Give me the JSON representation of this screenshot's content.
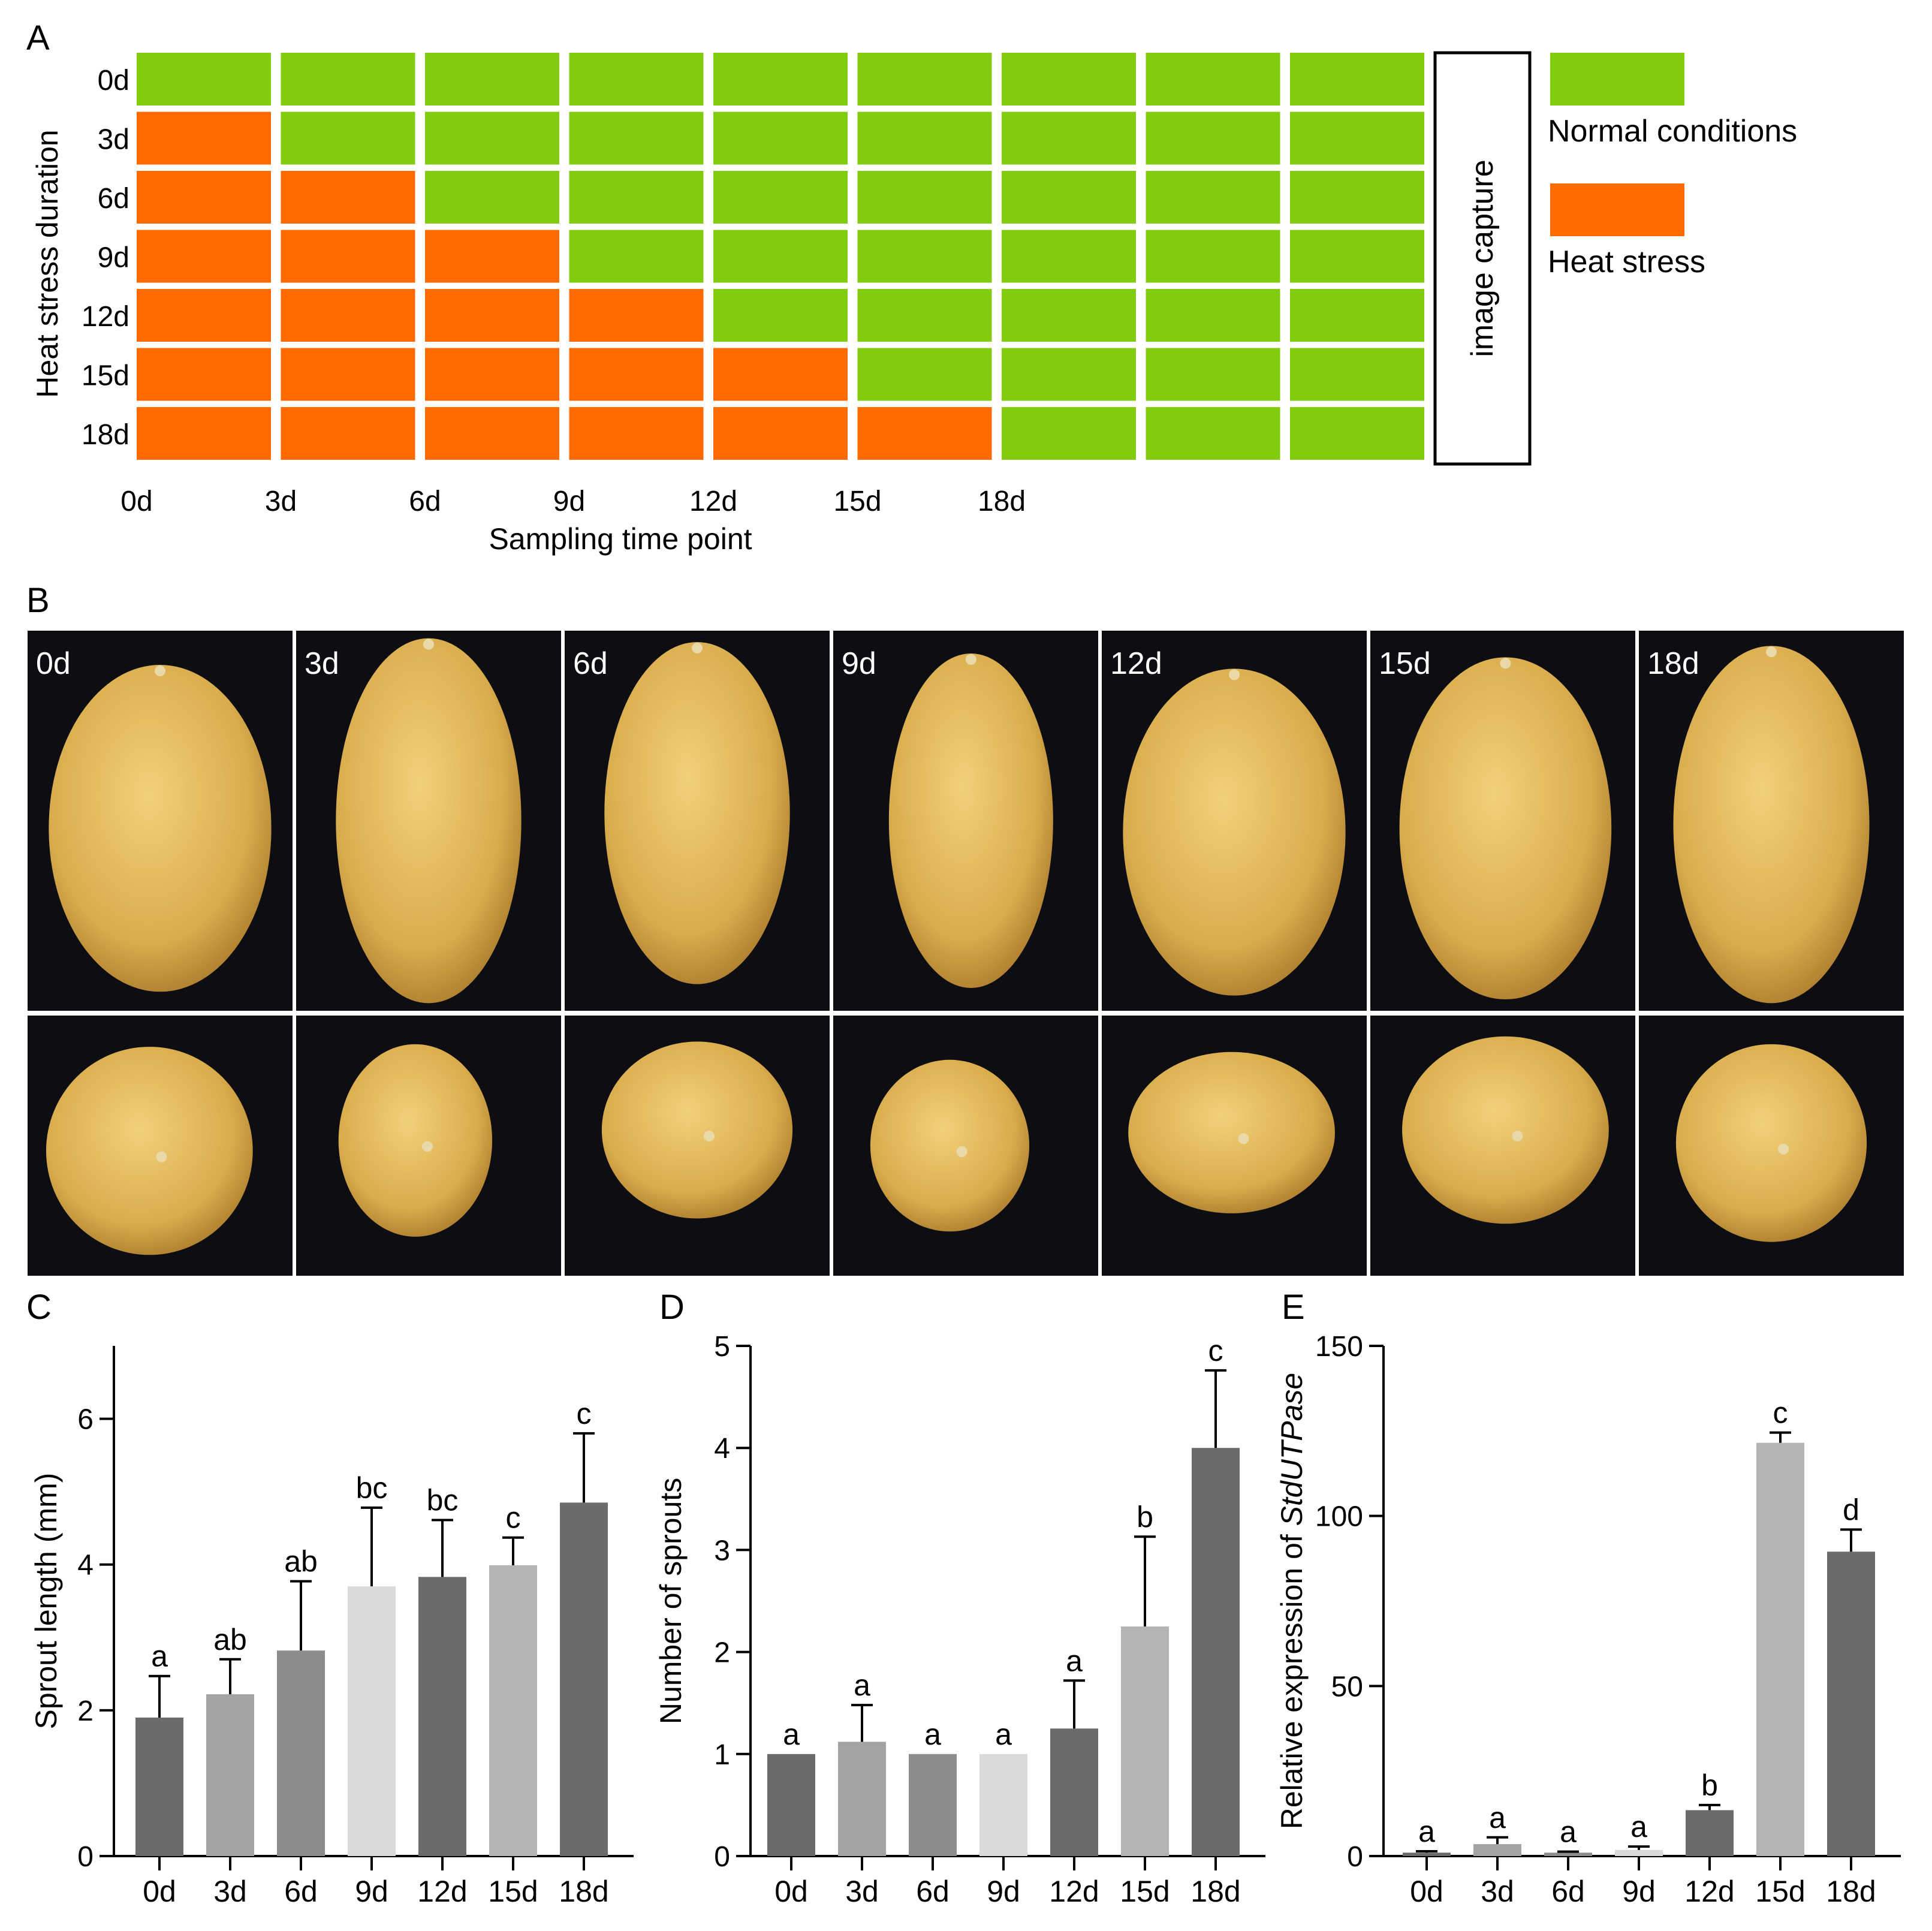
{
  "colors": {
    "normal": "#82cc10",
    "heat": "#ff6a00",
    "photo_bg": "#0d0d12",
    "potato": "#d4a84a",
    "bar_dark": "#6b6b6b",
    "bar_mid": "#a3a3a3",
    "bar_gray": "#8c8c8c",
    "bar_light": "#dadada",
    "bar_silver": "#b4b4b4"
  },
  "panelA": {
    "letter": "A",
    "y_title": "Heat stress duration",
    "x_title": "Sampling time point",
    "rows": [
      {
        "label": "0d",
        "heat": 0
      },
      {
        "label": "3d",
        "heat": 1
      },
      {
        "label": "6d",
        "heat": 2
      },
      {
        "label": "9d",
        "heat": 3
      },
      {
        "label": "12d",
        "heat": 4
      },
      {
        "label": "15d",
        "heat": 5
      },
      {
        "label": "18d",
        "heat": 6
      }
    ],
    "columns": 9,
    "x_ticks": [
      "0d",
      "3d",
      "6d",
      "9d",
      "12d",
      "15d",
      "18d"
    ],
    "capture_label": "image capture",
    "legend": [
      {
        "label": "Normal conditions",
        "color": "#82cc10"
      },
      {
        "label": "Heat stress",
        "color": "#ff6a00"
      }
    ]
  },
  "panelB": {
    "letter": "B",
    "labels": [
      "0d",
      "3d",
      "6d",
      "9d",
      "12d",
      "15d",
      "18d"
    ]
  },
  "chart_data": [
    {
      "panel": "C",
      "type": "bar",
      "categories": [
        "0d",
        "3d",
        "6d",
        "9d",
        "12d",
        "15d",
        "18d"
      ],
      "values": [
        1.9,
        2.22,
        2.82,
        3.7,
        3.83,
        3.99,
        4.85
      ],
      "errors": [
        0.57,
        0.48,
        0.95,
        1.08,
        0.78,
        0.38,
        0.95
      ],
      "letters": [
        "a",
        "ab",
        "ab",
        "bc",
        "bc",
        "c",
        "c"
      ],
      "title": "",
      "xlabel": "",
      "ylabel": "Sprout length (mm)",
      "ylabel_suffix": "",
      "ylim": [
        0,
        7
      ],
      "yticks": [
        0,
        2,
        4,
        6
      ],
      "bar_colors": [
        "#6b6b6b",
        "#a3a3a3",
        "#8c8c8c",
        "#dadada",
        "#6b6b6b",
        "#b4b4b4",
        "#6b6b6b"
      ]
    },
    {
      "panel": "D",
      "type": "bar",
      "categories": [
        "0d",
        "3d",
        "6d",
        "9d",
        "12d",
        "15d",
        "18d"
      ],
      "values": [
        1.0,
        1.12,
        1.0,
        1.0,
        1.25,
        2.25,
        4.0
      ],
      "errors": [
        0,
        0.36,
        0,
        0,
        0.47,
        0.88,
        0.76
      ],
      "letters": [
        "a",
        "a",
        "a",
        "a",
        "a",
        "b",
        "c"
      ],
      "title": "",
      "xlabel": "",
      "ylabel": "Number of sprouts",
      "ylabel_suffix": "",
      "ylim": [
        0,
        5
      ],
      "yticks": [
        0,
        1,
        2,
        3,
        4,
        5
      ],
      "bar_colors": [
        "#6b6b6b",
        "#a3a3a3",
        "#8c8c8c",
        "#dadada",
        "#6b6b6b",
        "#b4b4b4",
        "#6b6b6b"
      ]
    },
    {
      "panel": "E",
      "type": "bar",
      "categories": [
        "0d",
        "3d",
        "6d",
        "9d",
        "12d",
        "15d",
        "18d"
      ],
      "values": [
        1.0,
        3.5,
        1.0,
        1.8,
        13.5,
        121.5,
        89.5
      ],
      "errors": [
        0.4,
        2.0,
        0.3,
        1.0,
        1.5,
        3.0,
        6.5
      ],
      "letters": [
        "a",
        "a",
        "a",
        "a",
        "b",
        "c",
        "d"
      ],
      "title": "",
      "xlabel": "",
      "ylabel": "Relative expression of ",
      "ylabel_suffix": "StdUTPase",
      "ylim": [
        0,
        150
      ],
      "yticks": [
        0,
        50,
        100,
        150
      ],
      "bar_colors": [
        "#6b6b6b",
        "#a3a3a3",
        "#8c8c8c",
        "#dadada",
        "#6b6b6b",
        "#b4b4b4",
        "#6b6b6b"
      ]
    }
  ]
}
